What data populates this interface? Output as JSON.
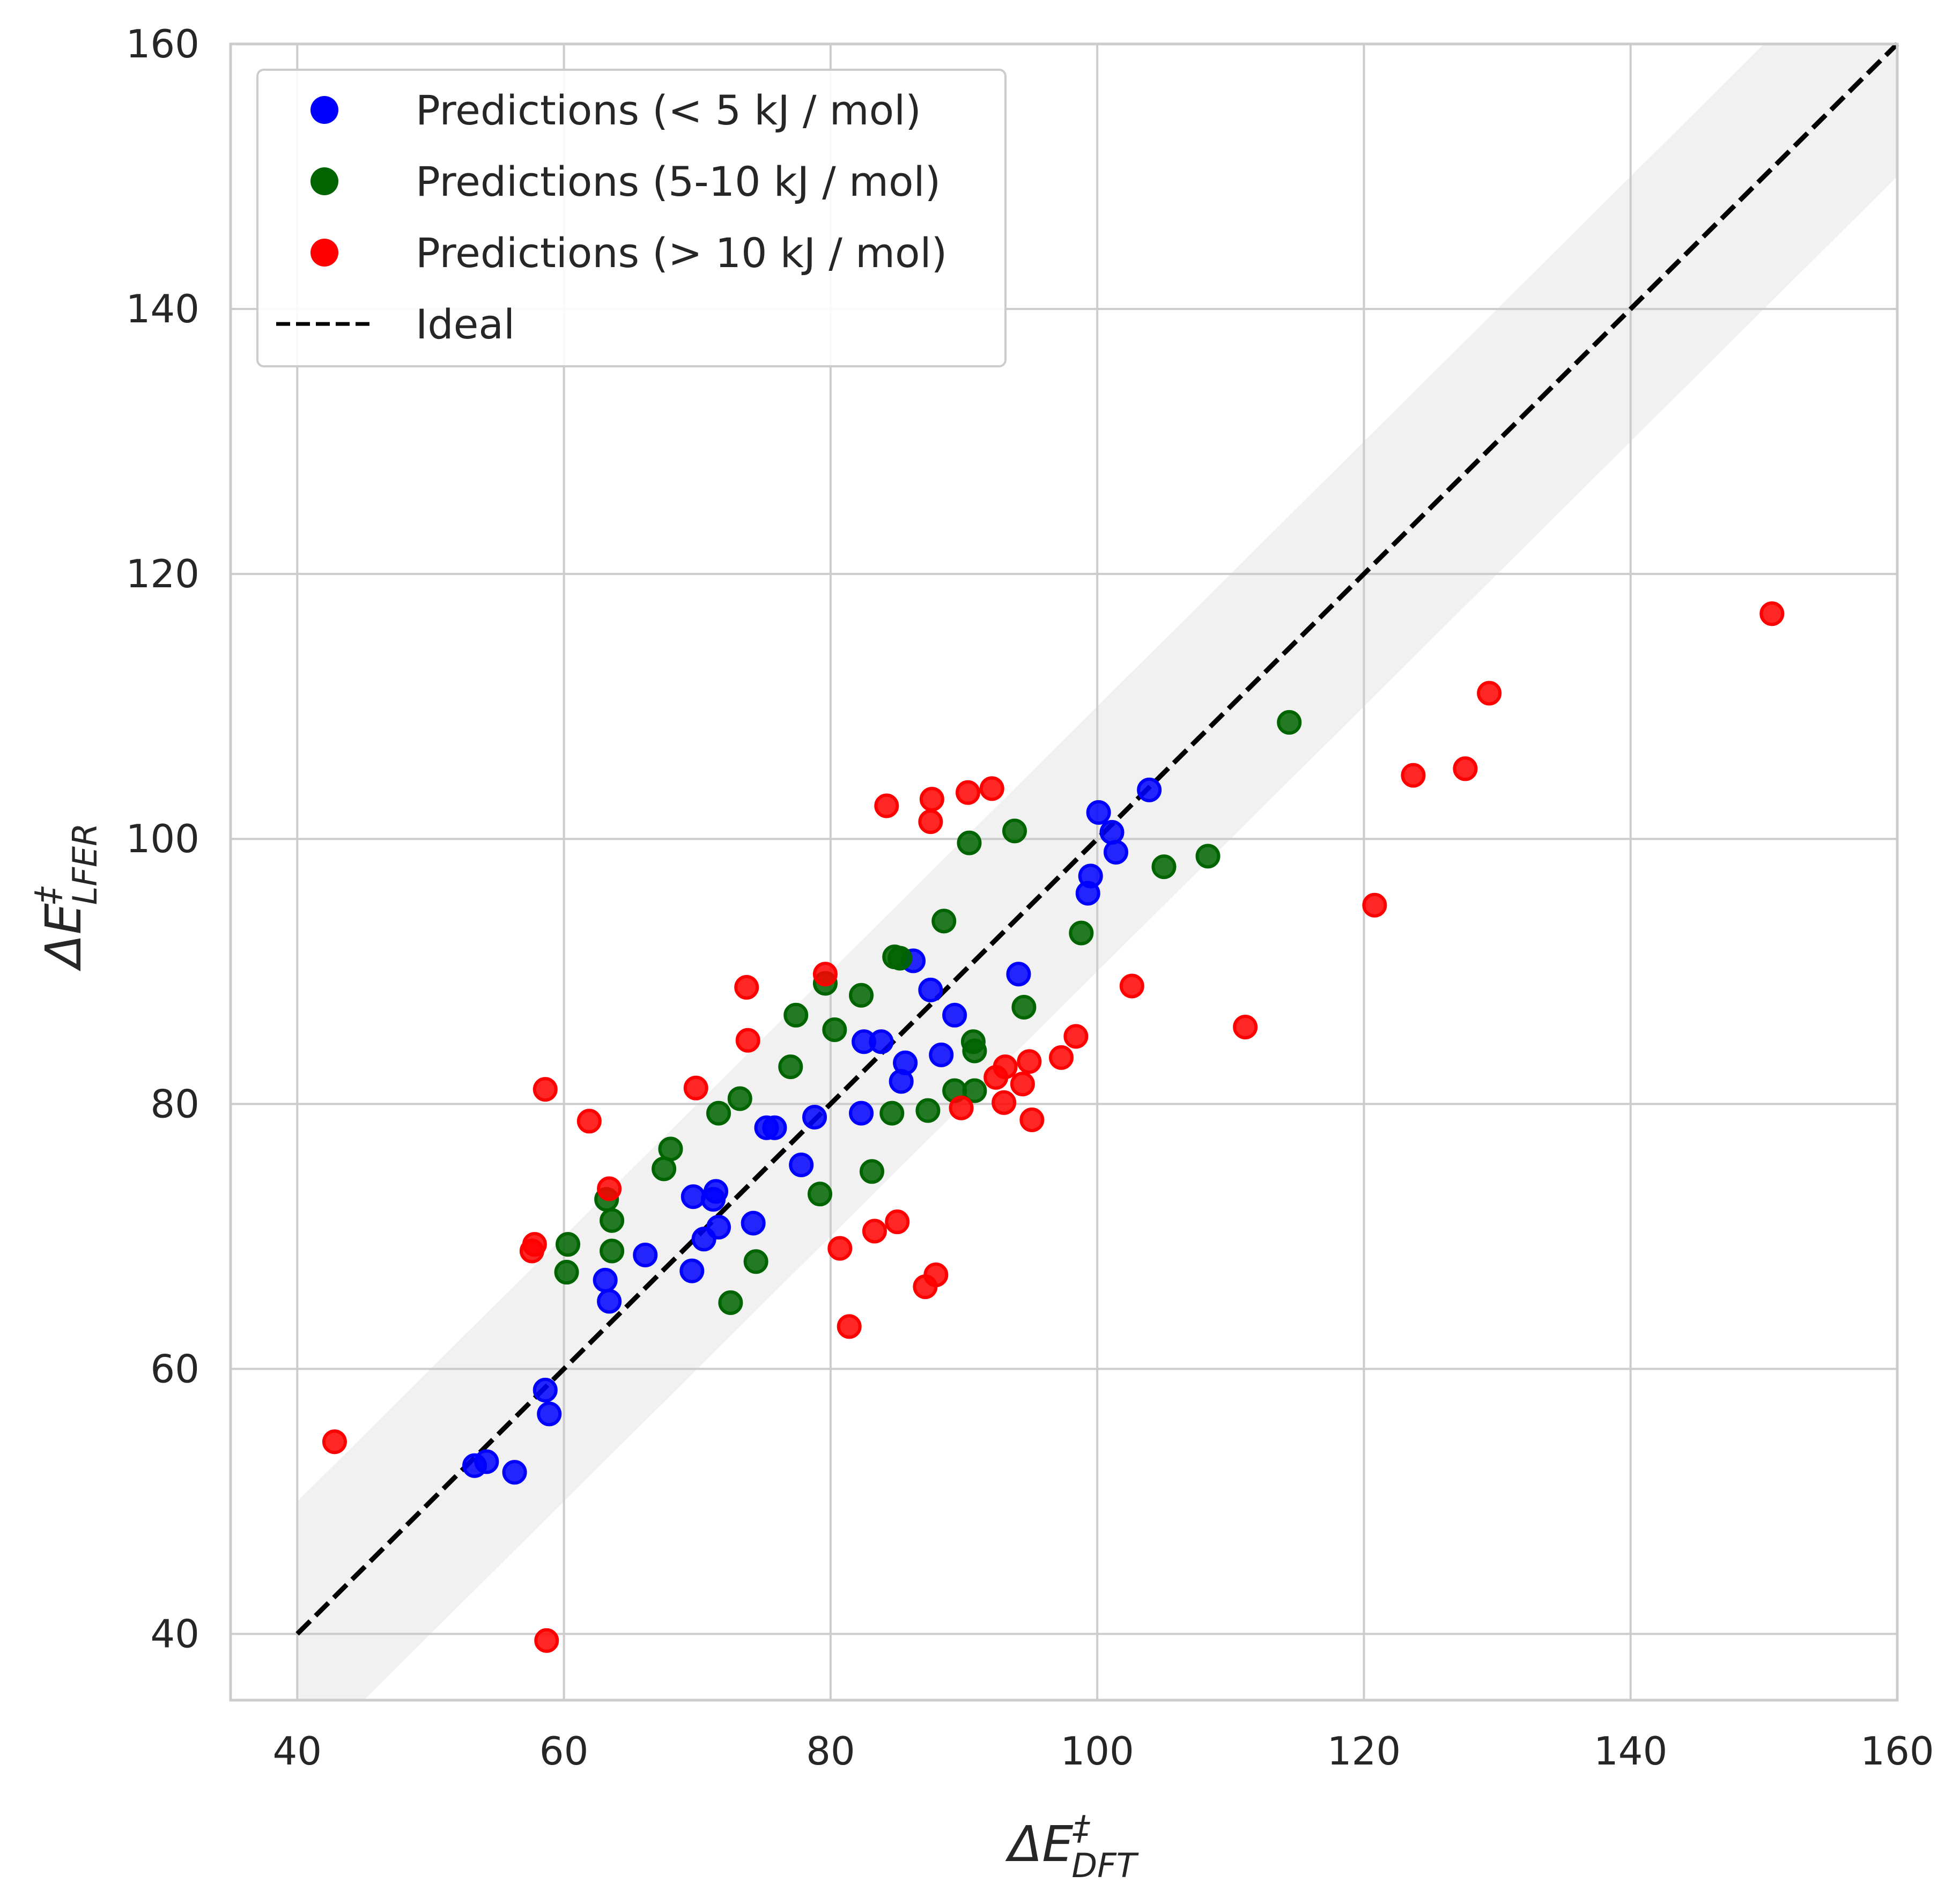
{
  "chart_data": {
    "type": "scatter",
    "xlabel": "ΔE‡DFT",
    "ylabel": "ΔE‡LFER",
    "xlabel_parts": {
      "base": "ΔE",
      "sup": "‡",
      "sub": "DFT"
    },
    "ylabel_parts": {
      "base": "ΔE",
      "sup": "‡",
      "sub": "LFER"
    },
    "xlim": [
      35,
      160
    ],
    "ylim": [
      35,
      160
    ],
    "xticks": [
      40,
      60,
      80,
      100,
      120,
      140,
      160
    ],
    "yticks": [
      40,
      60,
      80,
      100,
      120,
      140,
      160
    ],
    "grid": true,
    "legend_position": "top-left",
    "band_halfwidth": 10,
    "ideal_line": {
      "name": "Ideal",
      "x": [
        40,
        160
      ],
      "y": [
        40,
        160
      ],
      "color": "#000000",
      "style": "dashed"
    },
    "series": [
      {
        "name": "Predictions (< 5 kJ / mol)",
        "color": "#0000ff",
        "points": [
          [
            53.3,
            52.7
          ],
          [
            54.2,
            53.0
          ],
          [
            56.3,
            52.2
          ],
          [
            58.6,
            58.4
          ],
          [
            58.9,
            56.6
          ],
          [
            63.1,
            66.7
          ],
          [
            63.4,
            65.1
          ],
          [
            66.1,
            68.6
          ],
          [
            69.6,
            67.4
          ],
          [
            69.7,
            73.0
          ],
          [
            70.5,
            69.8
          ],
          [
            71.2,
            72.8
          ],
          [
            71.4,
            73.4
          ],
          [
            71.6,
            70.7
          ],
          [
            74.2,
            71.0
          ],
          [
            75.2,
            78.2
          ],
          [
            75.8,
            78.2
          ],
          [
            77.8,
            75.4
          ],
          [
            78.8,
            79.0
          ],
          [
            82.3,
            79.3
          ],
          [
            82.5,
            84.7
          ],
          [
            83.8,
            84.7
          ],
          [
            85.3,
            81.7
          ],
          [
            85.6,
            83.1
          ],
          [
            86.2,
            90.8
          ],
          [
            87.5,
            88.6
          ],
          [
            88.3,
            83.7
          ],
          [
            89.3,
            86.7
          ],
          [
            94.1,
            89.8
          ],
          [
            99.3,
            95.9
          ],
          [
            99.5,
            97.2
          ],
          [
            100.1,
            102.0
          ],
          [
            101.1,
            100.5
          ],
          [
            101.4,
            99.0
          ],
          [
            103.9,
            103.7
          ]
        ]
      },
      {
        "name": "Predictions (5-10 kJ / mol)",
        "color": "#006400",
        "points": [
          [
            60.2,
            67.3
          ],
          [
            60.3,
            69.4
          ],
          [
            63.2,
            72.8
          ],
          [
            63.6,
            71.2
          ],
          [
            63.6,
            68.9
          ],
          [
            67.5,
            75.1
          ],
          [
            68.0,
            76.6
          ],
          [
            71.6,
            79.3
          ],
          [
            72.5,
            65.0
          ],
          [
            73.2,
            80.4
          ],
          [
            74.4,
            68.1
          ],
          [
            77.0,
            82.8
          ],
          [
            77.4,
            86.7
          ],
          [
            79.2,
            73.2
          ],
          [
            79.6,
            89.1
          ],
          [
            80.3,
            85.6
          ],
          [
            82.3,
            88.2
          ],
          [
            83.1,
            74.9
          ],
          [
            84.6,
            79.3
          ],
          [
            84.8,
            91.1
          ],
          [
            85.2,
            91.0
          ],
          [
            87.3,
            79.5
          ],
          [
            88.5,
            93.8
          ],
          [
            89.3,
            81.0
          ],
          [
            90.4,
            99.7
          ],
          [
            90.7,
            84.7
          ],
          [
            90.8,
            84.0
          ],
          [
            90.8,
            81.0
          ],
          [
            93.8,
            100.6
          ],
          [
            94.5,
            87.3
          ],
          [
            98.8,
            92.9
          ],
          [
            105.0,
            97.9
          ],
          [
            108.3,
            98.7
          ],
          [
            114.4,
            108.8
          ]
        ]
      },
      {
        "name": "Predictions (> 10 kJ / mol)",
        "color": "#ff0000",
        "points": [
          [
            42.8,
            54.5
          ],
          [
            57.6,
            68.9
          ],
          [
            57.8,
            69.4
          ],
          [
            58.6,
            81.1
          ],
          [
            58.7,
            39.5
          ],
          [
            61.9,
            78.7
          ],
          [
            63.4,
            73.6
          ],
          [
            69.9,
            81.2
          ],
          [
            73.7,
            88.8
          ],
          [
            73.8,
            84.8
          ],
          [
            79.6,
            89.8
          ],
          [
            80.7,
            69.1
          ],
          [
            81.4,
            63.2
          ],
          [
            83.3,
            70.4
          ],
          [
            84.2,
            102.5
          ],
          [
            85.0,
            71.1
          ],
          [
            87.1,
            66.2
          ],
          [
            87.5,
            101.3
          ],
          [
            87.6,
            103.0
          ],
          [
            87.9,
            67.1
          ],
          [
            89.8,
            79.7
          ],
          [
            90.3,
            103.5
          ],
          [
            92.1,
            103.8
          ],
          [
            92.4,
            82.0
          ],
          [
            93.0,
            80.1
          ],
          [
            93.1,
            82.8
          ],
          [
            94.4,
            81.5
          ],
          [
            94.9,
            83.2
          ],
          [
            95.1,
            78.8
          ],
          [
            97.3,
            83.5
          ],
          [
            98.4,
            85.1
          ],
          [
            102.6,
            88.9
          ],
          [
            111.1,
            85.8
          ],
          [
            120.8,
            95.0
          ],
          [
            123.7,
            104.8
          ],
          [
            127.6,
            105.3
          ],
          [
            129.4,
            111.0
          ],
          [
            150.6,
            117.0
          ]
        ]
      }
    ]
  }
}
